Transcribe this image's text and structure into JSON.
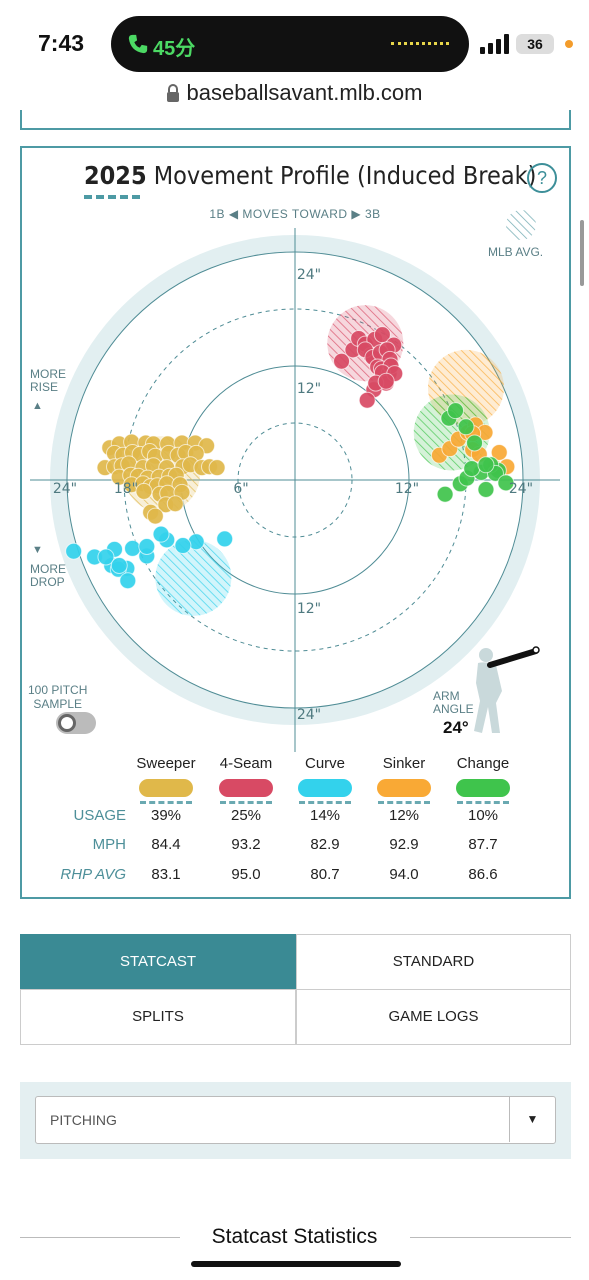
{
  "status_bar": {
    "time": "7:43",
    "call_text": "45分",
    "battery": "36"
  },
  "browser": {
    "url": "baseballsavant.mlb.com"
  },
  "movement_profile": {
    "title_year": "2025",
    "title_rest": "Movement Profile (Induced Break)",
    "help": "?",
    "moves_toward": "1B ◀  MOVES TOWARD  ▶ 3B",
    "mlb_avg": "MLB AVG.",
    "more_rise": [
      "MORE",
      "RISE"
    ],
    "more_drop": [
      "MORE",
      "DROP"
    ],
    "rings": {
      "r24_top": "24\"",
      "r12_top": "12\"",
      "r24_left": "24\"",
      "r18_left": "18\"",
      "r6_left": "6\"",
      "r12_right": "12\"",
      "r24_right": "24\"",
      "r12_bottom": "12\"",
      "r24_bottom": "24\""
    },
    "toggle_label": [
      "100 PITCH",
      "SAMPLE"
    ],
    "arm_angle_label": [
      "ARM",
      "ANGLE"
    ],
    "arm_angle": "24°"
  },
  "pitches": [
    {
      "name": "Sweeper",
      "color": "#e0b84a",
      "usage": "39%",
      "mph": "84.4",
      "rhp_avg": "83.1"
    },
    {
      "name": "4-Seam",
      "color": "#d84a64",
      "usage": "25%",
      "mph": "93.2",
      "rhp_avg": "95.0"
    },
    {
      "name": "Curve",
      "color": "#33d2ec",
      "usage": "14%",
      "mph": "82.9",
      "rhp_avg": "80.7"
    },
    {
      "name": "Sinker",
      "color": "#f9a935",
      "usage": "12%",
      "mph": "92.9",
      "rhp_avg": "94.0"
    },
    {
      "name": "Change",
      "color": "#3fc44c",
      "usage": "10%",
      "mph": "87.7",
      "rhp_avg": "86.6"
    }
  ],
  "row_labels": {
    "usage": "USAGE",
    "mph": "MPH",
    "rhp_avg": "RHP AVG"
  },
  "chart_data": {
    "type": "scatter",
    "xlabel": "",
    "ylabel": "",
    "xlim": [
      -28,
      28
    ],
    "ylim": [
      -28,
      28
    ],
    "series": [
      {
        "name": "Sweeper",
        "color": "#e0b84a",
        "x": [
          -19.5,
          -18.5,
          -17.2,
          -15.7,
          -14.9,
          -13.4,
          -11.9,
          -10.5,
          -9.3,
          -19,
          -18.1,
          -17.1,
          -16.3,
          -15.3,
          -14.7,
          -13.3,
          -12.3,
          -11.5,
          -10.4,
          -20,
          -19,
          -18.2,
          -17.5,
          -16,
          -14.9,
          -13.5,
          -11.8,
          -11,
          -9.8,
          -9,
          -8.2,
          -18.5,
          -17.3,
          -16.5,
          -15.5,
          -14.3,
          -13.2,
          -12.5,
          -17.2,
          -16,
          -15.2,
          -14.5,
          -13.5,
          -12.1,
          -15.9,
          -14.2,
          -13.4,
          -11.9,
          -13.6,
          -12.6,
          -15.2,
          -14.7
        ],
        "y": [
          3.4,
          3.8,
          4,
          3.9,
          3.8,
          3.8,
          3.9,
          3.9,
          3.6,
          2.8,
          2.6,
          2.9,
          2.7,
          3,
          2.5,
          2.8,
          2.6,
          2.9,
          2.8,
          1.3,
          1.4,
          1.5,
          1.7,
          1.3,
          1.5,
          1.3,
          1.4,
          1.6,
          1.3,
          1.4,
          1.3,
          0.3,
          0.5,
          0.4,
          0.2,
          0.3,
          0.4,
          0.5,
          -0.5,
          -0.4,
          -0.7,
          -0.6,
          -0.4,
          -0.5,
          -1.2,
          -1.5,
          -1.4,
          -1.3,
          -2.6,
          -2.5,
          -3.4,
          -3.8
        ]
      },
      {
        "name": "4-Seam",
        "color": "#d84a64",
        "x": [
          4.9,
          6.1,
          6.7,
          7.4,
          8,
          8.4,
          9.2,
          10.4,
          7.4,
          8.2,
          9,
          9.7,
          10,
          8.7,
          9.1,
          9.9,
          10.1,
          9.2,
          9.6,
          10.5,
          8.3,
          8.5,
          9.6,
          7.6
        ],
        "y": [
          12.5,
          13.7,
          14.9,
          14.3,
          13.1,
          14.8,
          15.3,
          14.2,
          13.7,
          12.9,
          13.4,
          13.7,
          12.7,
          11.9,
          11.7,
          11.2,
          12,
          11.3,
          10.2,
          11.2,
          9.5,
          10.2,
          10.4,
          8.4
        ]
      },
      {
        "name": "Curve",
        "color": "#33d2ec",
        "x": [
          -23.3,
          -21.1,
          -19.3,
          -17.7,
          -15.6,
          -13.5,
          -10.4,
          -7.4,
          -19,
          -18.6,
          -17.1,
          -15.6,
          -14.1,
          -11.8,
          -19.9,
          -18.5,
          -17.6
        ],
        "y": [
          -7.5,
          -8.1,
          -9,
          -9.3,
          -8,
          -6.3,
          -6.5,
          -6.2,
          -7.3,
          -9.4,
          -7.2,
          -7,
          -5.7,
          -6.9,
          -8.1,
          -9,
          -10.6
        ]
      },
      {
        "name": "Sinker",
        "color": "#f9a935",
        "x": [
          15.2,
          16.3,
          17.2,
          18.2,
          19,
          20,
          21.5,
          18.7,
          19.4,
          21,
          22.3,
          18.7
        ],
        "y": [
          2.6,
          3.3,
          4.3,
          5,
          5.8,
          5,
          2.9,
          3.2,
          2.7,
          1.3,
          1.4,
          4.9
        ]
      },
      {
        "name": "Change",
        "color": "#3fc44c",
        "x": [
          15.8,
          17.4,
          18.1,
          19.6,
          21.4,
          16.2,
          16.9,
          18,
          20.6,
          21.1,
          20.1,
          22.2,
          18.9,
          18.6,
          20.1
        ],
        "y": [
          -1.5,
          -0.4,
          0.2,
          0.8,
          1,
          6.5,
          7.3,
          5.6,
          1.6,
          0.7,
          -1,
          -0.3,
          3.9,
          1.2,
          1.6
        ]
      }
    ],
    "averages": [
      {
        "name": "Sweeper",
        "x": [
          -14
        ],
        "y": [
          0.6
        ]
      },
      {
        "name": "4-Seam",
        "x": [
          7.4
        ],
        "y": [
          14.4
        ]
      },
      {
        "name": "Curve",
        "x": [
          -10.7
        ],
        "y": [
          -10.3
        ]
      },
      {
        "name": "Sinker",
        "x": [
          18
        ],
        "y": [
          9.7
        ]
      },
      {
        "name": "Change",
        "x": [
          16.5
        ],
        "y": [
          5
        ]
      }
    ]
  },
  "tabs": [
    {
      "label": "STATCAST",
      "active": true
    },
    {
      "label": "STANDARD",
      "active": false
    },
    {
      "label": "SPLITS",
      "active": false
    },
    {
      "label": "GAME LOGS",
      "active": false
    }
  ],
  "select": {
    "value": "PITCHING",
    "arrow": "▼"
  },
  "section_title": "Statcast Statistics"
}
